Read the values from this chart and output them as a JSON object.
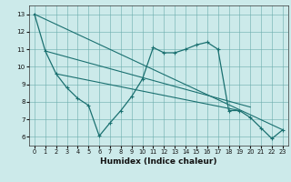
{
  "xlabel": "Humidex (Indice chaleur)",
  "background_color": "#cceaea",
  "grid_color": "#6aacac",
  "line_color": "#1a7070",
  "xlim": [
    -0.5,
    23.5
  ],
  "ylim": [
    5.5,
    13.5
  ],
  "yticks": [
    6,
    7,
    8,
    9,
    10,
    11,
    12,
    13
  ],
  "xticks": [
    0,
    1,
    2,
    3,
    4,
    5,
    6,
    7,
    8,
    9,
    10,
    11,
    12,
    13,
    14,
    15,
    16,
    17,
    18,
    19,
    20,
    21,
    22,
    23
  ],
  "series": [
    [
      0,
      13.0
    ],
    [
      1,
      10.9
    ],
    [
      2,
      9.6
    ],
    [
      3,
      8.8
    ],
    [
      4,
      8.2
    ],
    [
      5,
      7.8
    ],
    [
      6,
      6.05
    ],
    [
      7,
      6.8
    ],
    [
      8,
      7.5
    ],
    [
      9,
      8.3
    ],
    [
      10,
      9.3
    ],
    [
      11,
      11.1
    ],
    [
      12,
      10.8
    ],
    [
      13,
      10.8
    ],
    [
      14,
      11.0
    ],
    [
      15,
      11.25
    ],
    [
      16,
      11.4
    ],
    [
      17,
      11.0
    ],
    [
      18,
      7.5
    ],
    [
      19,
      7.5
    ],
    [
      20,
      7.1
    ],
    [
      21,
      6.5
    ],
    [
      22,
      5.9
    ],
    [
      23,
      6.4
    ]
  ],
  "line2": [
    [
      0,
      13.0
    ],
    [
      23,
      6.4
    ]
  ],
  "line3": [
    [
      1,
      10.9
    ],
    [
      20,
      7.7
    ]
  ],
  "line4": [
    [
      2,
      9.6
    ],
    [
      19,
      7.5
    ]
  ]
}
